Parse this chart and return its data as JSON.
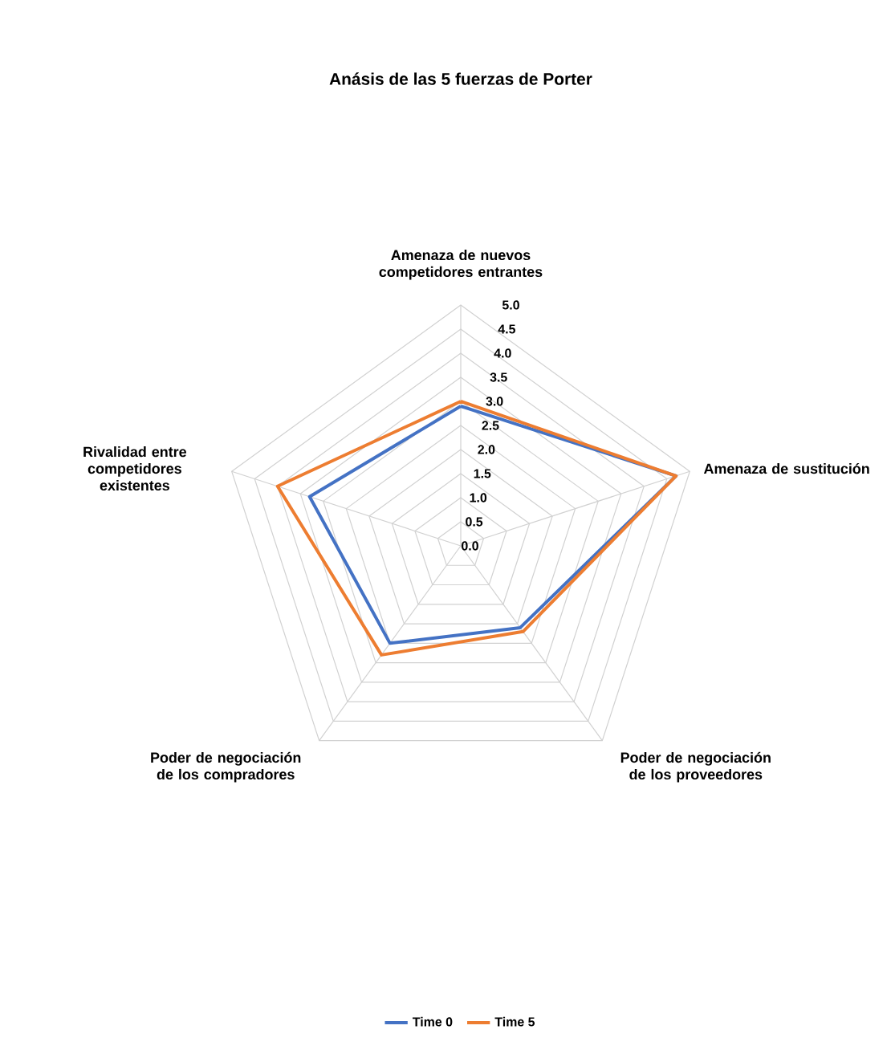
{
  "chart_data": {
    "type": "radar",
    "title": "Anásis de las 5 fuerzas de Porter",
    "categories": [
      "Amenaza de nuevos competidores entrantes",
      "Amenaza de sustitución",
      "Poder de negociación de los proveedores",
      "Poder de negociación de los compradores",
      "Rivalidad entre competidores existentes"
    ],
    "series": [
      {
        "name": "Time 0",
        "color": "#4472c4",
        "values": [
          2.9,
          4.7,
          2.1,
          2.5,
          3.3
        ]
      },
      {
        "name": "Time 5",
        "color": "#ed7d31",
        "values": [
          3.0,
          4.7,
          2.2,
          2.8,
          4.0
        ]
      }
    ],
    "ylim": [
      0,
      5
    ],
    "yticks": [
      {
        "value": 0,
        "label": "0.0"
      },
      0.5,
      {
        "value": 1,
        "label": "1.0"
      },
      1.5,
      {
        "value": 2,
        "label": "2.0"
      },
      2.5,
      {
        "value": 3,
        "label": "3.0"
      },
      3.5,
      {
        "value": 4,
        "label": "4.0"
      },
      4.5,
      {
        "value": 5,
        "label": "5.0"
      }
    ],
    "grid": true,
    "legend": "bottom"
  }
}
